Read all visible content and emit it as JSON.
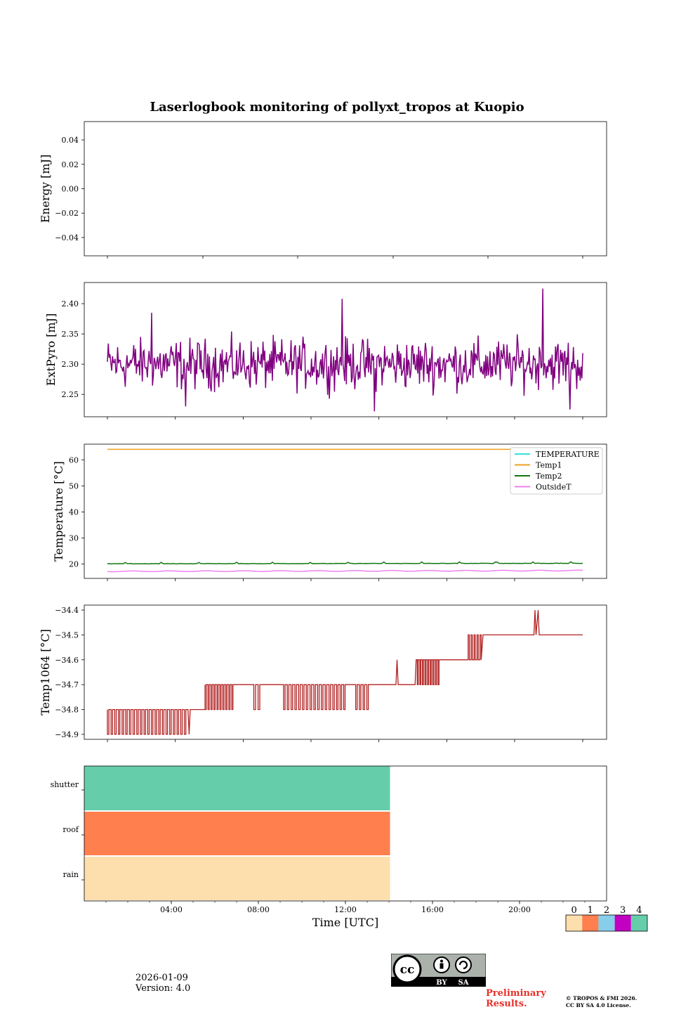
{
  "title": "Laserlogbook monitoring of pollyxt_tropos at Kuopio",
  "footer": {
    "date": "2026-01-09",
    "version": "Version: 4.0",
    "preliminary_line1": "Preliminary",
    "preliminary_line2": "Results.",
    "copyright_line1": "© TROPOS & FMI 2026.",
    "copyright_line2": "CC BY SA 4.0 License.",
    "license_badge": {
      "cc": "cc",
      "by": "BY",
      "sa": "SA"
    }
  },
  "chart_data": [
    {
      "type": "line",
      "id": "energy",
      "ylabel": "Energy [mJ]",
      "ylim": [
        -0.055,
        0.055
      ],
      "yticks": [
        0.04,
        0.02,
        0.0,
        -0.02,
        -0.04
      ],
      "ytick_labels": [
        "0.04",
        "0.02",
        "0.00",
        "−0.02",
        "−0.04"
      ],
      "series": []
    },
    {
      "type": "line",
      "id": "extpyro",
      "ylabel": "ExtPyro [mJ]",
      "ylim": [
        2.213,
        2.435
      ],
      "yticks": [
        2.4,
        2.35,
        2.3,
        2.25
      ],
      "ytick_labels": [
        "2.40",
        "2.35",
        "2.30",
        "2.25"
      ],
      "series": [
        {
          "name": "ExtPyro",
          "color": "#800080",
          "x_range_hours": [
            1.0,
            23.4
          ],
          "mean": 2.3,
          "spread": 0.035,
          "peaks": [
            [
              3.1,
              2.385
            ],
            [
              12.05,
              2.408
            ],
            [
              21.5,
              2.425
            ],
            [
              13.6,
              2.222
            ],
            [
              22.8,
              2.225
            ],
            [
              4.7,
              2.23
            ]
          ]
        }
      ]
    },
    {
      "type": "line",
      "id": "temperature",
      "ylabel": "Temperature [°C]",
      "ylim": [
        14.5,
        66
      ],
      "yticks": [
        60,
        50,
        40,
        30,
        20
      ],
      "ytick_labels": [
        "60",
        "50",
        "40",
        "30",
        "20"
      ],
      "legend": [
        "TEMPERATURE",
        "Temp1",
        "Temp2",
        "OutsideT"
      ],
      "series": [
        {
          "name": "TEMPERATURE",
          "color": "#33e0e0",
          "values": []
        },
        {
          "name": "Temp1",
          "color": "#f0a020",
          "x": [
            1.0,
            23.4
          ],
          "values": [
            64,
            64
          ]
        },
        {
          "name": "Temp2",
          "color": "#117711",
          "x": [
            1.0,
            23.4
          ],
          "values": [
            20.1,
            20.3
          ]
        },
        {
          "name": "OutsideT",
          "color": "#ee82ee",
          "x": [
            1.0,
            23.4
          ],
          "values": [
            17.2,
            17.5
          ]
        }
      ]
    },
    {
      "type": "line",
      "id": "temp1064",
      "ylabel": "Temp1064 [°C]",
      "ylim": [
        -34.92,
        -34.38
      ],
      "yticks": [
        -34.4,
        -34.5,
        -34.6,
        -34.7,
        -34.8,
        -34.9
      ],
      "ytick_labels": [
        "−34.4",
        "−34.5",
        "−34.6",
        "−34.7",
        "−34.8",
        "−34.9"
      ],
      "series": [
        {
          "name": "Temp1064",
          "color": "#b22222",
          "levels": [
            [
              1.0,
              5.4,
              -34.8
            ],
            [
              5.4,
              7.0,
              -34.8
            ],
            [
              7.0,
              15.5,
              -34.7
            ],
            [
              15.5,
              18.0,
              -34.6
            ],
            [
              18.0,
              23.4,
              -34.5
            ]
          ]
        }
      ]
    },
    {
      "type": "heatmap",
      "id": "status",
      "xlabel": "Time [UTC]",
      "xlim_hours": [
        0,
        24
      ],
      "xticks_hours": [
        4,
        8,
        12,
        16,
        20
      ],
      "xtick_labels": [
        "04:00",
        "08:00",
        "12:00",
        "16:00",
        "20:00"
      ],
      "rows": [
        {
          "name": "shutter",
          "value": 4,
          "end_hour": 14.05
        },
        {
          "name": "roof",
          "value": 1,
          "end_hour": 14.05
        },
        {
          "name": "rain",
          "value": 0,
          "end_hour": 14.05
        }
      ],
      "colorbar": {
        "labels": [
          "0",
          "1",
          "2",
          "3",
          "4"
        ],
        "colors": [
          "#fddfae",
          "#ff7f4f",
          "#87ceeb",
          "#c200c2",
          "#66cdaa"
        ]
      }
    }
  ]
}
